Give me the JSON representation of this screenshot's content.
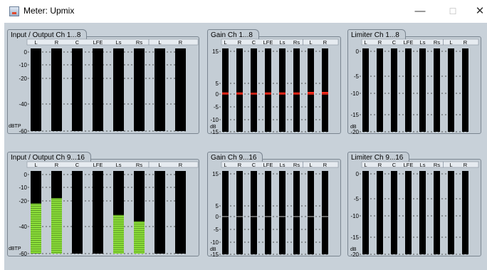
{
  "window": {
    "title": "Meter: Upmix",
    "minimize": "—",
    "maximize": "☐",
    "close": "✕"
  },
  "channels_a": [
    "L",
    "R",
    "C",
    "LFE",
    "Ls",
    "Rs",
    "L",
    "R"
  ],
  "panels": [
    {
      "id": "io1",
      "title": "Input / Output Ch 1...8",
      "type": "io",
      "unit": "dBTP",
      "ticks": [
        "0",
        "-10",
        "-20",
        "-40",
        "-60"
      ],
      "levels_db": [
        null,
        null,
        null,
        null,
        null,
        null,
        null,
        null
      ]
    },
    {
      "id": "gain1",
      "title": "Gain Ch 1...8",
      "type": "gain",
      "unit": "dB",
      "ticks": [
        "15",
        "5",
        "0",
        "-5",
        "-10",
        "-15"
      ],
      "gains_db": [
        0.3,
        0.3,
        0.2,
        0.3,
        0.3,
        0.3,
        0.5,
        0.5
      ]
    },
    {
      "id": "lim1",
      "title": "Limiter Ch 1...8",
      "type": "lim",
      "unit": "dB",
      "ticks": [
        "0",
        "-5",
        "-10",
        "-15",
        "-20"
      ]
    },
    {
      "id": "io2",
      "title": "Input / Output Ch 9...16",
      "type": "io",
      "unit": "dBTP",
      "ticks": [
        "0",
        "-10",
        "-20",
        "-40",
        "-60"
      ],
      "levels_db": [
        -22,
        -18,
        null,
        null,
        -31,
        -36,
        null,
        null
      ]
    },
    {
      "id": "gain2",
      "title": "Gain Ch 9...16",
      "type": "gain",
      "unit": "dB",
      "ticks": [
        "15",
        "5",
        "0",
        "-5",
        "-10",
        "-15"
      ],
      "gains_db": [
        null,
        null,
        null,
        null,
        null,
        null,
        null,
        null
      ]
    },
    {
      "id": "lim2",
      "title": "Limiter Ch 9...16",
      "type": "lim",
      "unit": "dB",
      "ticks": [
        "0",
        "-5",
        "-10",
        "-15",
        "-20"
      ]
    }
  ],
  "colors": {
    "bar": "#000000",
    "level": "#8de03a",
    "gain": "#ff2a1a",
    "panel": "#c4cdd5",
    "grid": "#2a2a2a"
  }
}
